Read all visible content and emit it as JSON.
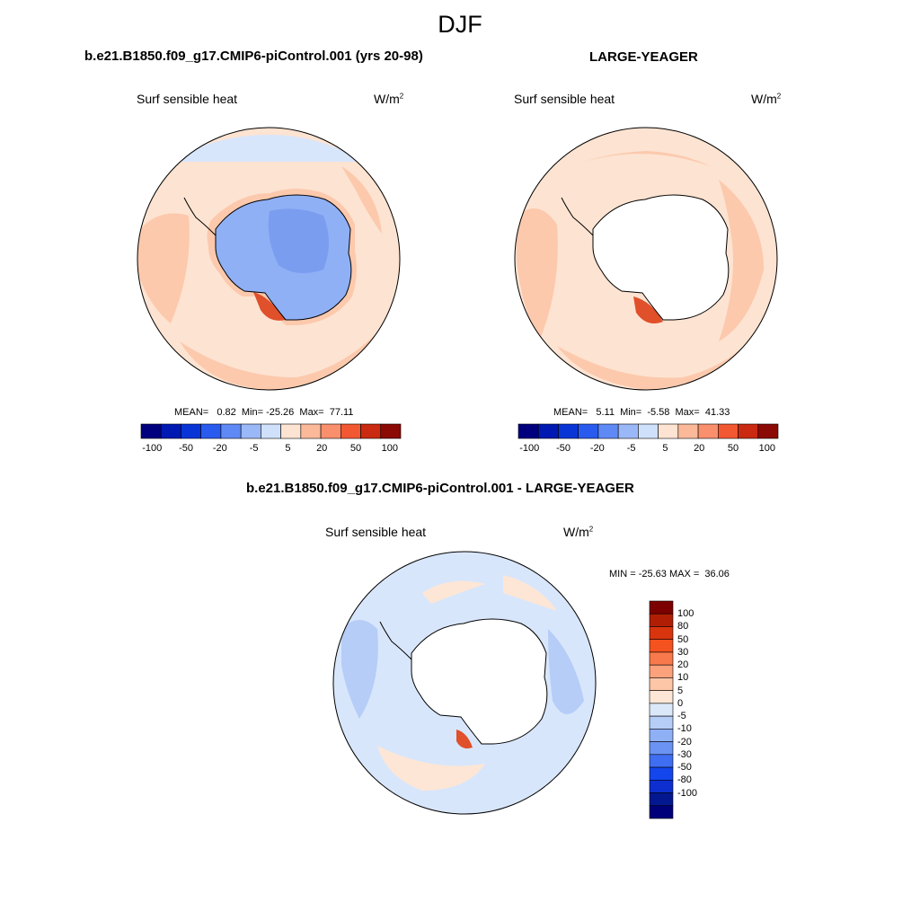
{
  "figure": {
    "title": "DJF",
    "var_name": "Surf sensible heat",
    "units_base": "W/m",
    "units_exp": "2"
  },
  "panels": [
    {
      "id": "case",
      "title": "b.e21.B1850.f09_g17.CMIP6-piControl.001 (yrs 20-98)",
      "stats": "MEAN=   0.82  Min= -25.26  Max=  77.11"
    },
    {
      "id": "obs",
      "title": "LARGE-YEAGER",
      "stats": "MEAN=   5.11  Min=  -5.58  Max=  41.33"
    },
    {
      "id": "diff",
      "title": "b.e21.B1850.f09_g17.CMIP6-piControl.001 - LARGE-YEAGER",
      "stats": "MIN = -25.63 MAX =  36.06"
    }
  ],
  "chart_data": [
    {
      "type": "heatmap",
      "projection": "south-polar-stereographic",
      "title": "b.e21.B1850.f09_g17.CMIP6-piControl.001 (yrs 20-98)",
      "variable": "Surf sensible heat",
      "units": "W/m2",
      "mean": 0.82,
      "min": -25.26,
      "max": 77.11,
      "colorbar_levels": [
        -100,
        -50,
        -20,
        -5,
        5,
        20,
        50,
        100
      ]
    },
    {
      "type": "heatmap",
      "projection": "south-polar-stereographic",
      "title": "LARGE-YEAGER",
      "variable": "Surf sensible heat",
      "units": "W/m2",
      "mean": 5.11,
      "min": -5.58,
      "max": 41.33,
      "colorbar_levels": [
        -100,
        -50,
        -20,
        -5,
        5,
        20,
        50,
        100
      ]
    },
    {
      "type": "heatmap",
      "projection": "south-polar-stereographic",
      "title": "b.e21.B1850.f09_g17.CMIP6-piControl.001 - LARGE-YEAGER",
      "variable": "Surf sensible heat",
      "units": "W/m2",
      "min": -25.63,
      "max": 36.06,
      "colorbar_levels": [
        100,
        80,
        50,
        30,
        20,
        10,
        5,
        0,
        -5,
        -10,
        -20,
        -30,
        -50,
        -80,
        -100
      ]
    }
  ],
  "colorbar_h": {
    "colors": [
      "#00007f",
      "#0019b2",
      "#0a35d6",
      "#2a5bef",
      "#5f8af5",
      "#9ab7f7",
      "#cfe0fb",
      "#fde3d1",
      "#fcb99a",
      "#f98f6c",
      "#f25832",
      "#ca2a11",
      "#8b0a05"
    ],
    "labels": [
      "-100",
      "-50",
      "-20",
      "-5",
      "5",
      "20",
      "50",
      "100"
    ]
  },
  "colorbar_v": {
    "colors": [
      "#7d0000",
      "#b01f05",
      "#d8350f",
      "#f4521f",
      "#f87a4c",
      "#fba17c",
      "#fdc6a6",
      "#fde6d6",
      "#dbe8fa",
      "#b5cdf7",
      "#8fb0f5",
      "#6a93f3",
      "#3f6ef2",
      "#1346ec",
      "#0d2fcf",
      "#031890",
      "#00007a"
    ],
    "labels": [
      "100",
      "80",
      "50",
      "30",
      "20",
      "10",
      "5",
      "0",
      "-5",
      "-10",
      "-20",
      "-30",
      "-50",
      "-80",
      "-100"
    ]
  },
  "map_colors": {
    "ocean_pos_light": "#fde3d1",
    "ocean_pos_mid": "#fcc9ad",
    "ocean_pos_strong": "#f9a27f",
    "hot_spot": "#e0502a",
    "ocean_neg_light": "#d8e6fb",
    "ice_neg": "#8fb0f5",
    "ice_neg_dark": "#7a9df0",
    "land_mask": "#ffffff",
    "diff_neg_light": "#d8e6fb",
    "diff_neg_mid": "#b5cdf7",
    "diff_pos_light": "#fde6d6"
  }
}
